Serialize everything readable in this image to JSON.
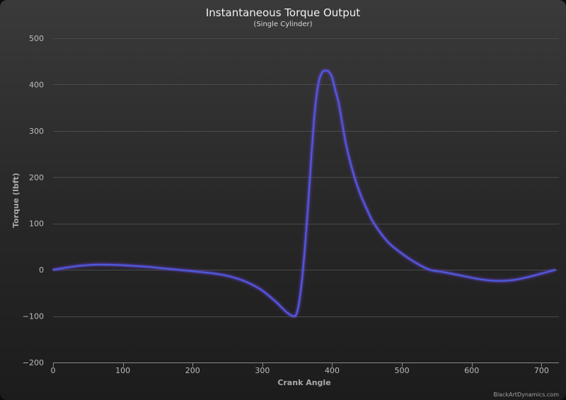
{
  "chart_data": {
    "type": "line",
    "title": "Instantaneous Torque Output",
    "subtitle": "(Single Cylinder)",
    "xlabel": "Crank Angle",
    "ylabel": "Torque (lbft)",
    "xlim": [
      0,
      725
    ],
    "ylim": [
      -200,
      500
    ],
    "x_ticks": [
      0,
      100,
      200,
      300,
      400,
      500,
      600,
      700
    ],
    "x_tick_labels": [
      "0",
      "100",
      "200",
      "300",
      "400",
      "500",
      "600",
      "700"
    ],
    "y_ticks": [
      -200,
      -100,
      0,
      100,
      200,
      300,
      400,
      500
    ],
    "y_tick_labels": [
      "−200",
      "−100",
      "0",
      "100",
      "200",
      "300",
      "400",
      "500"
    ],
    "grid": true,
    "legend": "none",
    "series": [
      {
        "color": "#4a5fe0",
        "x": [
          0,
          20,
          40,
          60,
          80,
          100,
          120,
          140,
          160,
          180,
          200,
          220,
          240,
          260,
          280,
          300,
          320,
          335,
          345,
          350,
          355,
          360,
          365,
          370,
          375,
          380,
          385,
          390,
          395,
          400,
          405,
          410,
          420,
          430,
          440,
          450,
          460,
          480,
          500,
          520,
          540,
          560,
          580,
          600,
          620,
          640,
          660,
          680,
          700,
          720
        ],
        "y": [
          0,
          5,
          9,
          11,
          11,
          10,
          8,
          6,
          3,
          0,
          -3,
          -6,
          -10,
          -17,
          -28,
          -45,
          -70,
          -92,
          -100,
          -90,
          -45,
          30,
          130,
          240,
          340,
          400,
          425,
          430,
          428,
          415,
          385,
          355,
          270,
          210,
          165,
          130,
          100,
          60,
          35,
          15,
          0,
          -5,
          -11,
          -17,
          -22,
          -24,
          -22,
          -16,
          -8,
          0
        ]
      }
    ]
  },
  "credit": "BlackArtDynamics.com"
}
